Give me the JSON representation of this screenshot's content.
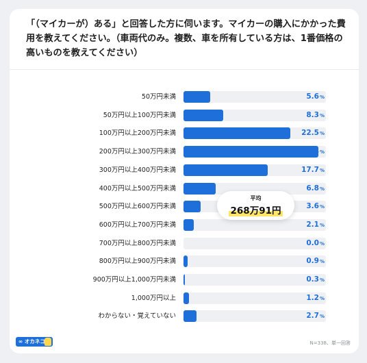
{
  "title": "「（マイカーが）ある」と回答した方に伺います。マイカーの購入にかかった費用を教えてください。（車両代のみ。複数、車を所有している方は、1番価格の高いものを教えてください）",
  "average": {
    "label": "平均",
    "value": "268万91円"
  },
  "logo_text": "∞ オカネコ",
  "footnote": "N=338、単一回答",
  "colors": {
    "bar": "#1e6fd9",
    "track": "#eef0f4",
    "highlight": "#ffe66b"
  },
  "chart_data": {
    "type": "bar",
    "orientation": "horizontal",
    "title": "「（マイカーが）ある」と回答した方に伺います。マイカーの購入にかかった費用を教えてください。（車両代のみ。複数、車を所有している方は、1番価格の高いものを教えてください）",
    "xlabel": "",
    "ylabel": "",
    "unit": "%",
    "xlim": [
      0,
      30
    ],
    "categories": [
      "50万円未満",
      "50万円以上100万円未満",
      "100万円以上200万円未満",
      "200万円以上300万円未満",
      "300万円以上400万円未満",
      "400万円以上500万円未満",
      "500万円以上600万円未満",
      "600万円以上700万円未満",
      "700万円以上800万円未満",
      "800万円以上900万円未満",
      "900万円以上1,000万円未満",
      "1,000万円以上",
      "わからない・覚えていない"
    ],
    "values": [
      5.6,
      8.3,
      22.5,
      28.4,
      17.7,
      6.8,
      3.6,
      2.1,
      0.0,
      0.9,
      0.3,
      1.2,
      2.7
    ],
    "value_labels": [
      "5.6",
      "8.3",
      "22.5",
      "28.4",
      "17.7",
      "6.8",
      "3.6",
      "2.1",
      "0.0",
      "0.9",
      "0.3",
      "1.2",
      "2.7"
    ]
  }
}
